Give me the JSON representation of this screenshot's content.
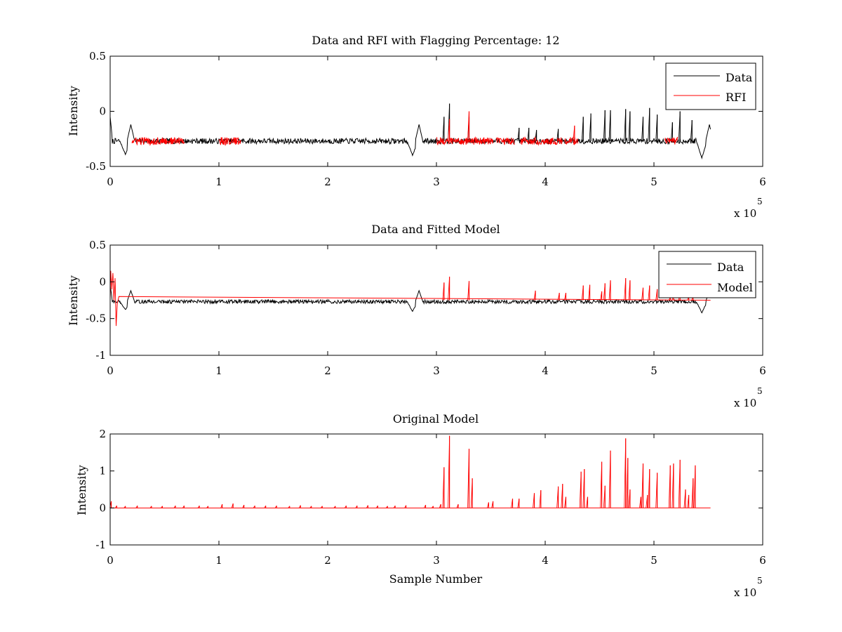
{
  "chart_data": [
    {
      "type": "line",
      "title": "Data and RFI with Flagging Percentage: 12",
      "xlabel": "",
      "ylabel": "Intensity",
      "xlim": [
        0,
        600000
      ],
      "ylim": [
        -0.5,
        0.5
      ],
      "xticks": [
        0,
        1,
        2,
        3,
        4,
        5,
        6
      ],
      "yticks": [
        -0.5,
        0,
        0.5
      ],
      "xtick_labels": [
        "0",
        "1",
        "2",
        "3",
        "4",
        "5",
        "6"
      ],
      "ytick_labels": [
        "-0.5",
        "0",
        "0.5"
      ],
      "x_multiplier_base": "x 10",
      "x_multiplier_exp": "5",
      "legend_position": "top-right",
      "series": [
        {
          "name": "Data",
          "color": "#000000",
          "baseline": -0.27,
          "x_end": 552000,
          "dips": [
            [
              14000,
              -0.39
            ],
            [
              278000,
              -0.4
            ],
            [
              544000,
              -0.42
            ]
          ],
          "bumps": [
            [
              19000,
              -0.12
            ],
            [
              284000,
              -0.12
            ],
            [
              551000,
              -0.12
            ]
          ],
          "spikes": [
            [
              307000,
              -0.05
            ],
            [
              312000,
              0.07
            ],
            [
              330000,
              -0.05
            ],
            [
              376000,
              -0.15
            ],
            [
              385000,
              -0.15
            ],
            [
              392000,
              -0.17
            ],
            [
              412000,
              -0.16
            ],
            [
              435000,
              -0.05
            ],
            [
              442000,
              -0.02
            ],
            [
              455000,
              0.01
            ],
            [
              460000,
              0.01
            ],
            [
              474000,
              0.02
            ],
            [
              478000,
              0.0
            ],
            [
              490000,
              -0.05
            ],
            [
              496000,
              0.03
            ],
            [
              503000,
              -0.03
            ],
            [
              517000,
              -0.1
            ],
            [
              524000,
              0.0
            ],
            [
              535000,
              -0.08
            ]
          ]
        },
        {
          "name": "RFI",
          "color": "#ff0000",
          "baseline": -0.27,
          "segments": [
            [
              20000,
              68000
            ],
            [
              100000,
              120000
            ],
            [
              300000,
              352000
            ],
            [
              355000,
              372000
            ],
            [
              377000,
              416000
            ],
            [
              418000,
              430000
            ],
            [
              510000,
              522000
            ]
          ],
          "spikes": [
            [
              312000,
              -0.07
            ],
            [
              330000,
              0.0
            ],
            [
              427000,
              -0.13
            ]
          ]
        }
      ]
    },
    {
      "type": "line",
      "title": "Data and Fitted Model",
      "xlabel": "",
      "ylabel": "Intensity",
      "xlim": [
        0,
        600000
      ],
      "ylim": [
        -1,
        0.5
      ],
      "xticks": [
        0,
        1,
        2,
        3,
        4,
        5,
        6
      ],
      "yticks": [
        -1,
        -0.5,
        0,
        0.5
      ],
      "xtick_labels": [
        "0",
        "1",
        "2",
        "3",
        "4",
        "5",
        "6"
      ],
      "ytick_labels": [
        "-1",
        "-0.5",
        "0",
        "0.5"
      ],
      "x_multiplier_base": "x 10",
      "x_multiplier_exp": "5",
      "legend_position": "top-right",
      "series": [
        {
          "name": "Data",
          "color": "#000000",
          "baseline": -0.27,
          "x_end": 552000,
          "dips": [
            [
              14000,
              -0.38
            ],
            [
              278000,
              -0.4
            ],
            [
              544000,
              -0.42
            ]
          ],
          "bumps": [
            [
              19000,
              -0.12
            ],
            [
              284000,
              -0.12
            ],
            [
              551000,
              -0.12
            ]
          ],
          "spikes": []
        },
        {
          "name": "Model",
          "color": "#ff0000",
          "baseline": -0.25,
          "x_end": 552000,
          "startup": [
            [
              500,
              0.15
            ],
            [
              1500,
              -0.1
            ],
            [
              2500,
              0.12
            ],
            [
              3500,
              -0.25
            ],
            [
              4500,
              0.05
            ],
            [
              5500,
              -0.6
            ],
            [
              6500,
              -0.3
            ],
            [
              8000,
              -0.2
            ]
          ],
          "spikes": [
            [
              307000,
              -0.01
            ],
            [
              312000,
              0.07
            ],
            [
              330000,
              0.01
            ],
            [
              391000,
              -0.12
            ],
            [
              413000,
              -0.15
            ],
            [
              419000,
              -0.15
            ],
            [
              435000,
              -0.05
            ],
            [
              441000,
              -0.04
            ],
            [
              452000,
              -0.13
            ],
            [
              455000,
              -0.02
            ],
            [
              460000,
              0.02
            ],
            [
              474000,
              0.05
            ],
            [
              478000,
              0.02
            ],
            [
              490000,
              -0.08
            ],
            [
              496000,
              -0.05
            ],
            [
              503000,
              -0.1
            ],
            [
              515000,
              -0.21
            ],
            [
              518000,
              -0.14
            ],
            [
              524000,
              -0.14
            ],
            [
              532000,
              -0.19
            ],
            [
              536000,
              -0.18
            ]
          ]
        }
      ]
    },
    {
      "type": "line",
      "title": "Original Model",
      "xlabel": "Sample Number",
      "ylabel": "Intensity",
      "xlim": [
        0,
        600000
      ],
      "ylim": [
        -1,
        2
      ],
      "xticks": [
        0,
        1,
        2,
        3,
        4,
        5,
        6
      ],
      "yticks": [
        -1,
        0,
        1,
        2
      ],
      "xtick_labels": [
        "0",
        "1",
        "2",
        "3",
        "4",
        "5",
        "6"
      ],
      "ytick_labels": [
        "-1",
        "0",
        "1",
        "2"
      ],
      "x_multiplier_base": "x 10",
      "x_multiplier_exp": "5",
      "legend_position": "none",
      "series": [
        {
          "name": "Original Model",
          "color": "#ff0000",
          "baseline": 0,
          "x_end": 552000,
          "spikes": [
            [
              1000,
              0.18
            ],
            [
              6000,
              0.06
            ],
            [
              14000,
              0.05
            ],
            [
              25000,
              0.06
            ],
            [
              38000,
              0.05
            ],
            [
              48000,
              0.05
            ],
            [
              60000,
              0.06
            ],
            [
              68000,
              0.06
            ],
            [
              82000,
              0.06
            ],
            [
              90000,
              0.05
            ],
            [
              103000,
              0.1
            ],
            [
              113000,
              0.12
            ],
            [
              123000,
              0.08
            ],
            [
              133000,
              0.06
            ],
            [
              143000,
              0.06
            ],
            [
              153000,
              0.06
            ],
            [
              165000,
              0.05
            ],
            [
              175000,
              0.07
            ],
            [
              185000,
              0.05
            ],
            [
              195000,
              0.05
            ],
            [
              207000,
              0.05
            ],
            [
              217000,
              0.06
            ],
            [
              227000,
              0.06
            ],
            [
              237000,
              0.07
            ],
            [
              246000,
              0.06
            ],
            [
              255000,
              0.05
            ],
            [
              262000,
              0.06
            ],
            [
              272000,
              0.07
            ],
            [
              290000,
              0.08
            ],
            [
              297000,
              0.05
            ],
            [
              304000,
              0.1
            ],
            [
              307000,
              1.1
            ],
            [
              312000,
              1.95
            ],
            [
              320000,
              0.1
            ],
            [
              330000,
              1.6
            ],
            [
              333000,
              0.8
            ],
            [
              348000,
              0.15
            ],
            [
              352000,
              0.18
            ],
            [
              370000,
              0.25
            ],
            [
              376000,
              0.25
            ],
            [
              390000,
              0.4
            ],
            [
              396000,
              0.48
            ],
            [
              412000,
              0.58
            ],
            [
              416000,
              0.65
            ],
            [
              419000,
              0.3
            ],
            [
              433000,
              0.98
            ],
            [
              436000,
              1.05
            ],
            [
              439000,
              0.3
            ],
            [
              452000,
              1.25
            ],
            [
              455000,
              0.6
            ],
            [
              460000,
              1.55
            ],
            [
              474000,
              1.88
            ],
            [
              476000,
              1.35
            ],
            [
              478000,
              0.5
            ],
            [
              488000,
              0.3
            ],
            [
              490000,
              1.2
            ],
            [
              494000,
              0.35
            ],
            [
              496000,
              1.05
            ],
            [
              503000,
              0.95
            ],
            [
              515000,
              1.15
            ],
            [
              518000,
              1.2
            ],
            [
              524000,
              1.3
            ],
            [
              529000,
              0.5
            ],
            [
              532000,
              0.35
            ],
            [
              536000,
              0.8
            ],
            [
              538000,
              1.15
            ]
          ]
        }
      ]
    }
  ]
}
